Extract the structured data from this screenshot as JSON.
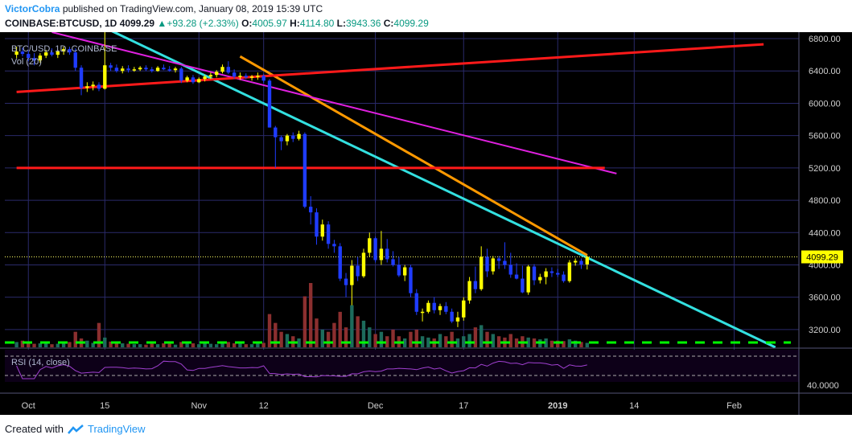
{
  "header": {
    "author": "VictorCobra",
    "published_text": "published on TradingView.com, January 08, 2019 15:39 UTC",
    "symbol": "COINBASE:BTCUSD, 1D",
    "last": "4099.29",
    "change": "+93.28 (+2.33%)",
    "open_label": "O:",
    "open": "4005.97",
    "high_label": "H:",
    "high": "4114.80",
    "low_label": "L:",
    "low": "3943.36",
    "close_label": "C:",
    "close": "4099.29"
  },
  "legend": {
    "symbol": "BTC/USD, 1D, COINBASE",
    "vol": "Vol (20)",
    "rsi": "RSI (14, close)"
  },
  "footer": {
    "created_with": "Created with",
    "brand": "TradingView"
  },
  "colors": {
    "background": "#000000",
    "grid": "#2a2a6a",
    "bull_candle": "#ffff00",
    "bear_candle": "#1f3cff",
    "vol_up": "#1d6b5c",
    "vol_down": "#8b2f2f",
    "vol_ma": "#00ff00",
    "trend_cyan": "#33e0e0",
    "trend_orange": "#ff9900",
    "trend_magenta": "#e020e0",
    "trend_red": "#ff1a1a",
    "rsi_line": "#a040d0",
    "price_label_bg": "#ffff00"
  },
  "chart_data": {
    "type": "candlestick",
    "title": "BTC/USD, 1D, COINBASE",
    "y_ticks": [
      6800,
      6400,
      6000,
      5600,
      5200,
      4800,
      4400,
      4000,
      3600,
      3200
    ],
    "y_tick_labels": [
      "6800.00",
      "6400.00",
      "6000.00",
      "5600.00",
      "5200.00",
      "4800.00",
      "4400.00",
      "4000.00",
      "3600.00",
      "3200.00"
    ],
    "ylim": [
      2980,
      6880
    ],
    "last_price": 4099.29,
    "last_price_label": "4099.29",
    "x_ticks": [
      "Oct",
      "15",
      "Nov",
      "12",
      "Dec",
      "17",
      "2019",
      "14",
      "Feb"
    ],
    "x_tick_positions": [
      2,
      15,
      31,
      42,
      61,
      76,
      92,
      105,
      122
    ],
    "x_range": [
      -2,
      133
    ],
    "rsi_tick_label": "40.0000",
    "candles": [
      [
        6600,
        6700,
        6560,
        6640
      ],
      [
        6640,
        6690,
        6580,
        6610
      ],
      [
        6610,
        6650,
        6520,
        6560
      ],
      [
        6560,
        6620,
        6470,
        6530
      ],
      [
        6530,
        6620,
        6500,
        6590
      ],
      [
        6590,
        6660,
        6560,
        6630
      ],
      [
        6630,
        6680,
        6580,
        6600
      ],
      [
        6600,
        6660,
        6560,
        6640
      ],
      [
        6640,
        6700,
        6600,
        6670
      ],
      [
        6670,
        6700,
        6600,
        6630
      ],
      [
        6630,
        6680,
        6400,
        6440
      ],
      [
        6440,
        6470,
        6100,
        6190
      ],
      [
        6190,
        6260,
        6140,
        6210
      ],
      [
        6210,
        6270,
        6160,
        6230
      ],
      [
        6230,
        6260,
        6150,
        6180
      ],
      [
        6180,
        6900,
        6170,
        6470
      ],
      [
        6470,
        6500,
        6400,
        6440
      ],
      [
        6440,
        6480,
        6380,
        6400
      ],
      [
        6400,
        6460,
        6370,
        6430
      ],
      [
        6430,
        6470,
        6380,
        6410
      ],
      [
        6410,
        6450,
        6390,
        6420
      ],
      [
        6420,
        6460,
        6400,
        6440
      ],
      [
        6440,
        6470,
        6400,
        6420
      ],
      [
        6420,
        6450,
        6380,
        6400
      ],
      [
        6400,
        6460,
        6390,
        6440
      ],
      [
        6440,
        6480,
        6410,
        6420
      ],
      [
        6420,
        6460,
        6390,
        6410
      ],
      [
        6410,
        6450,
        6380,
        6430
      ],
      [
        6430,
        6450,
        6250,
        6280
      ],
      [
        6280,
        6340,
        6260,
        6320
      ],
      [
        6320,
        6350,
        6240,
        6260
      ],
      [
        6260,
        6320,
        6250,
        6300
      ],
      [
        6300,
        6350,
        6270,
        6330
      ],
      [
        6330,
        6380,
        6300,
        6350
      ],
      [
        6350,
        6410,
        6320,
        6390
      ],
      [
        6390,
        6480,
        6370,
        6450
      ],
      [
        6450,
        6520,
        6360,
        6380
      ],
      [
        6380,
        6420,
        6300,
        6330
      ],
      [
        6330,
        6380,
        6290,
        6340
      ],
      [
        6340,
        6370,
        6300,
        6320
      ],
      [
        6320,
        6350,
        6280,
        6330
      ],
      [
        6330,
        6380,
        6290,
        6340
      ],
      [
        6340,
        6360,
        6250,
        6280
      ],
      [
        6280,
        6300,
        5700,
        5700
      ],
      [
        5700,
        5720,
        5200,
        5580
      ],
      [
        5580,
        5600,
        5420,
        5530
      ],
      [
        5530,
        5620,
        5480,
        5600
      ],
      [
        5600,
        5640,
        5520,
        5560
      ],
      [
        5560,
        5660,
        5540,
        5620
      ],
      [
        5620,
        5640,
        4700,
        4720
      ],
      [
        4720,
        4850,
        4500,
        4650
      ],
      [
        4650,
        4700,
        4250,
        4350
      ],
      [
        4350,
        4560,
        4300,
        4500
      ],
      [
        4500,
        4540,
        4200,
        4260
      ],
      [
        4260,
        4310,
        4150,
        4230
      ],
      [
        4230,
        4270,
        3800,
        3830
      ],
      [
        3830,
        3900,
        3600,
        3750
      ],
      [
        3750,
        4060,
        3500,
        3990
      ],
      [
        3990,
        4100,
        3800,
        3860
      ],
      [
        3860,
        4200,
        3840,
        4150
      ],
      [
        4150,
        4400,
        4100,
        4330
      ],
      [
        4330,
        4350,
        4030,
        4060
      ],
      [
        4060,
        4420,
        4000,
        4200
      ],
      [
        4200,
        4320,
        4030,
        4070
      ],
      [
        4070,
        4170,
        3980,
        4000
      ],
      [
        4000,
        4100,
        3850,
        3870
      ],
      [
        3870,
        4000,
        3800,
        3970
      ],
      [
        3970,
        4000,
        3600,
        3650
      ],
      [
        3650,
        3700,
        3380,
        3420
      ],
      [
        3420,
        3460,
        3300,
        3420
      ],
      [
        3420,
        3560,
        3400,
        3530
      ],
      [
        3530,
        3600,
        3400,
        3440
      ],
      [
        3440,
        3520,
        3380,
        3490
      ],
      [
        3490,
        3540,
        3390,
        3420
      ],
      [
        3420,
        3460,
        3280,
        3300
      ],
      [
        3300,
        3420,
        3230,
        3350
      ],
      [
        3350,
        3600,
        3310,
        3560
      ],
      [
        3560,
        3850,
        3520,
        3800
      ],
      [
        3800,
        3980,
        3650,
        3700
      ],
      [
        3700,
        4230,
        3680,
        4100
      ],
      [
        4100,
        4200,
        3850,
        3920
      ],
      [
        3920,
        4110,
        3880,
        4080
      ],
      [
        4080,
        4110,
        3950,
        4050
      ],
      [
        4050,
        4280,
        3950,
        4000
      ],
      [
        4000,
        4150,
        3840,
        3880
      ],
      [
        3880,
        4020,
        3820,
        3830
      ],
      [
        3830,
        3990,
        3650,
        3660
      ],
      [
        3660,
        4000,
        3630,
        3980
      ],
      [
        3980,
        4010,
        3750,
        3810
      ],
      [
        3810,
        3890,
        3770,
        3850
      ],
      [
        3850,
        3960,
        3760,
        3920
      ],
      [
        3920,
        3970,
        3850,
        3900
      ],
      [
        3900,
        3950,
        3850,
        3880
      ],
      [
        3880,
        3920,
        3780,
        3800
      ],
      [
        3800,
        4060,
        3780,
        4030
      ],
      [
        4030,
        4080,
        3990,
        4050
      ],
      [
        4050,
        4080,
        3950,
        4006
      ],
      [
        4006,
        4115,
        3943,
        4099
      ]
    ],
    "volumes": [
      0.12,
      0.15,
      0.1,
      0.08,
      0.09,
      0.11,
      0.07,
      0.08,
      0.1,
      0.12,
      0.35,
      0.2,
      0.15,
      0.1,
      0.55,
      0.22,
      0.13,
      0.1,
      0.09,
      0.08,
      0.07,
      0.07,
      0.06,
      0.08,
      0.07,
      0.09,
      0.08,
      0.06,
      0.12,
      0.08,
      0.09,
      0.07,
      0.09,
      0.08,
      0.07,
      0.1,
      0.12,
      0.09,
      0.08,
      0.07,
      0.07,
      0.08,
      0.1,
      0.75,
      0.55,
      0.35,
      0.3,
      0.25,
      0.2,
      1.15,
      1.45,
      0.65,
      0.4,
      0.35,
      0.55,
      0.8,
      0.45,
      0.95,
      0.7,
      0.6,
      0.45,
      0.3,
      0.35,
      0.25,
      0.4,
      0.25,
      0.2,
      0.35,
      0.4,
      0.25,
      0.22,
      0.2,
      0.3,
      0.25,
      0.35,
      0.2,
      0.25,
      0.3,
      0.45,
      0.5,
      0.35,
      0.3,
      0.25,
      0.22,
      0.3,
      0.2,
      0.25,
      0.22,
      0.2,
      0.18,
      0.2,
      0.15,
      0.15,
      0.14,
      0.18,
      0.15,
      0.12,
      0.1
    ],
    "trendlines": [
      {
        "color": "cyan",
        "from": [
          16,
          6900
        ],
        "to": [
          129,
          2980
        ]
      },
      {
        "color": "orange",
        "from": [
          38,
          6580
        ],
        "to": [
          97,
          4120
        ]
      },
      {
        "color": "magenta",
        "from": [
          6,
          6880
        ],
        "to": [
          102,
          5130
        ]
      },
      {
        "color": "red",
        "from": [
          0,
          6140
        ],
        "to": [
          127,
          6730
        ]
      },
      {
        "color": "red",
        "from": [
          0,
          5200
        ],
        "to": [
          100,
          5200
        ]
      }
    ]
  }
}
